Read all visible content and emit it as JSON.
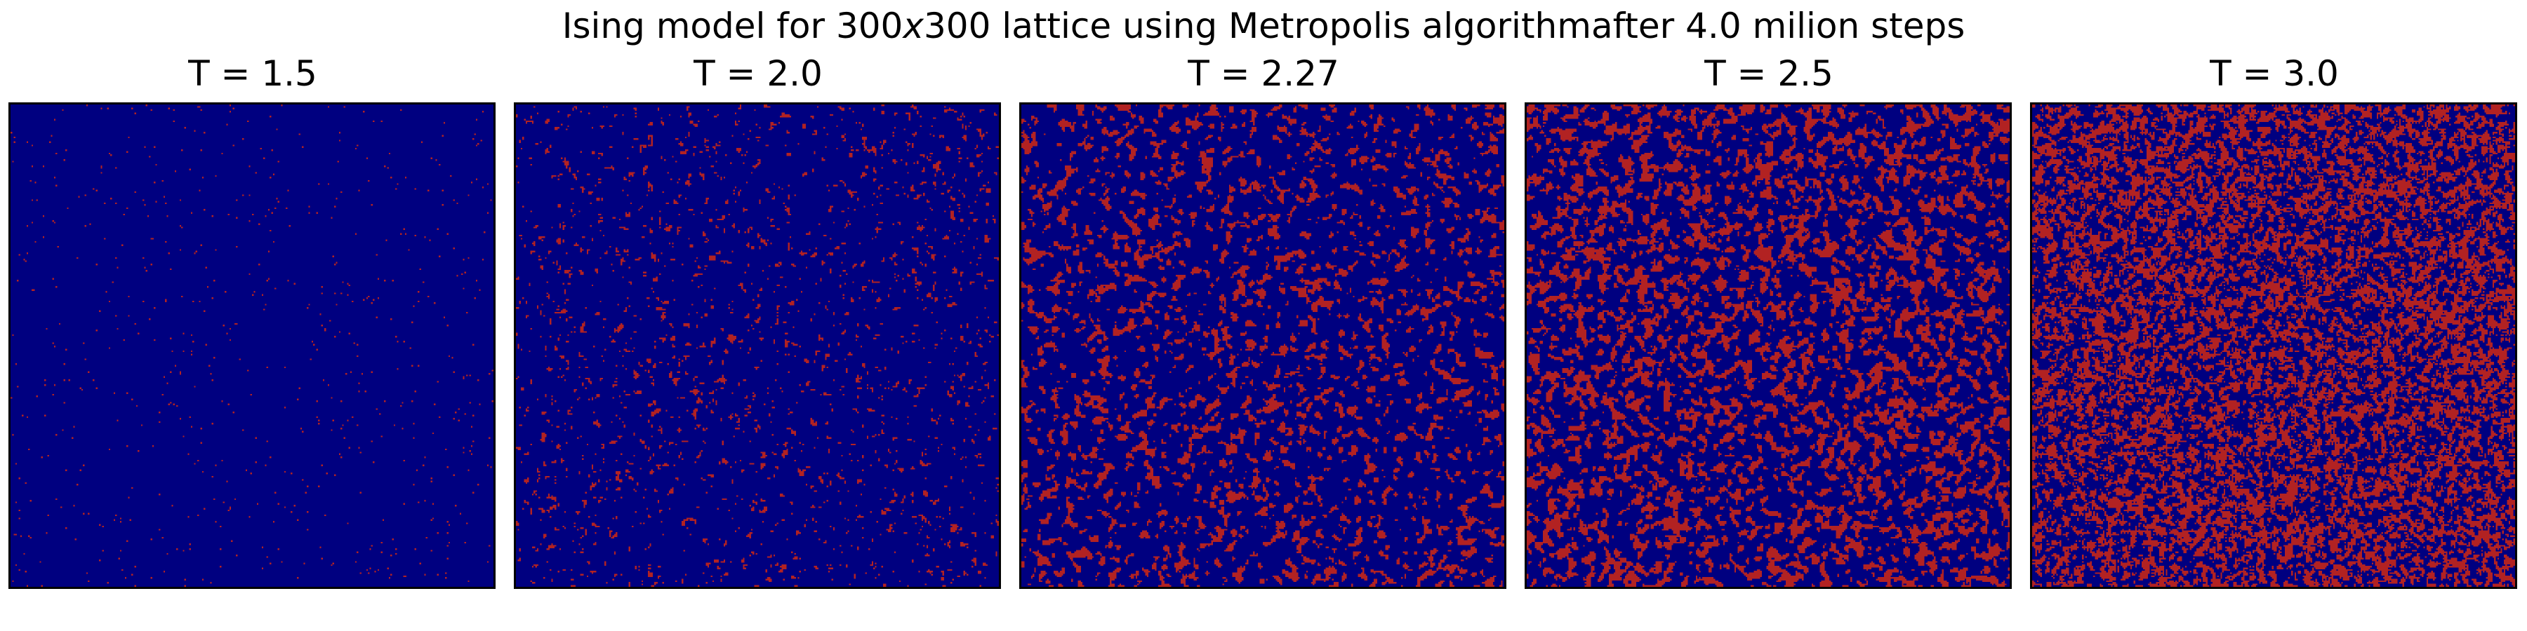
{
  "figure": {
    "title_main": "Ising model for 300",
    "title_x": "x",
    "title_rest": "300 lattice using Metropolis algorithmafter 4.0 milion steps"
  },
  "colors": {
    "spin_down": "#000080",
    "spin_up": "#b22222",
    "frame": "#000000"
  },
  "chart_data": {
    "type": "heatmap",
    "lattice_size": [
      300,
      300
    ],
    "values": [
      -1,
      1
    ],
    "panels": [
      {
        "title": "T = 1.5",
        "temperature": 1.5,
        "minority_fraction": 0.008
      },
      {
        "title": "T = 2.0",
        "temperature": 2.0,
        "minority_fraction": 0.05
      },
      {
        "title": "T = 2.27",
        "temperature": 2.27,
        "minority_fraction": 0.18
      },
      {
        "title": "T = 2.5",
        "temperature": 2.5,
        "minority_fraction": 0.32
      },
      {
        "title": "T = 3.0",
        "temperature": 3.0,
        "minority_fraction": 0.45
      }
    ]
  }
}
